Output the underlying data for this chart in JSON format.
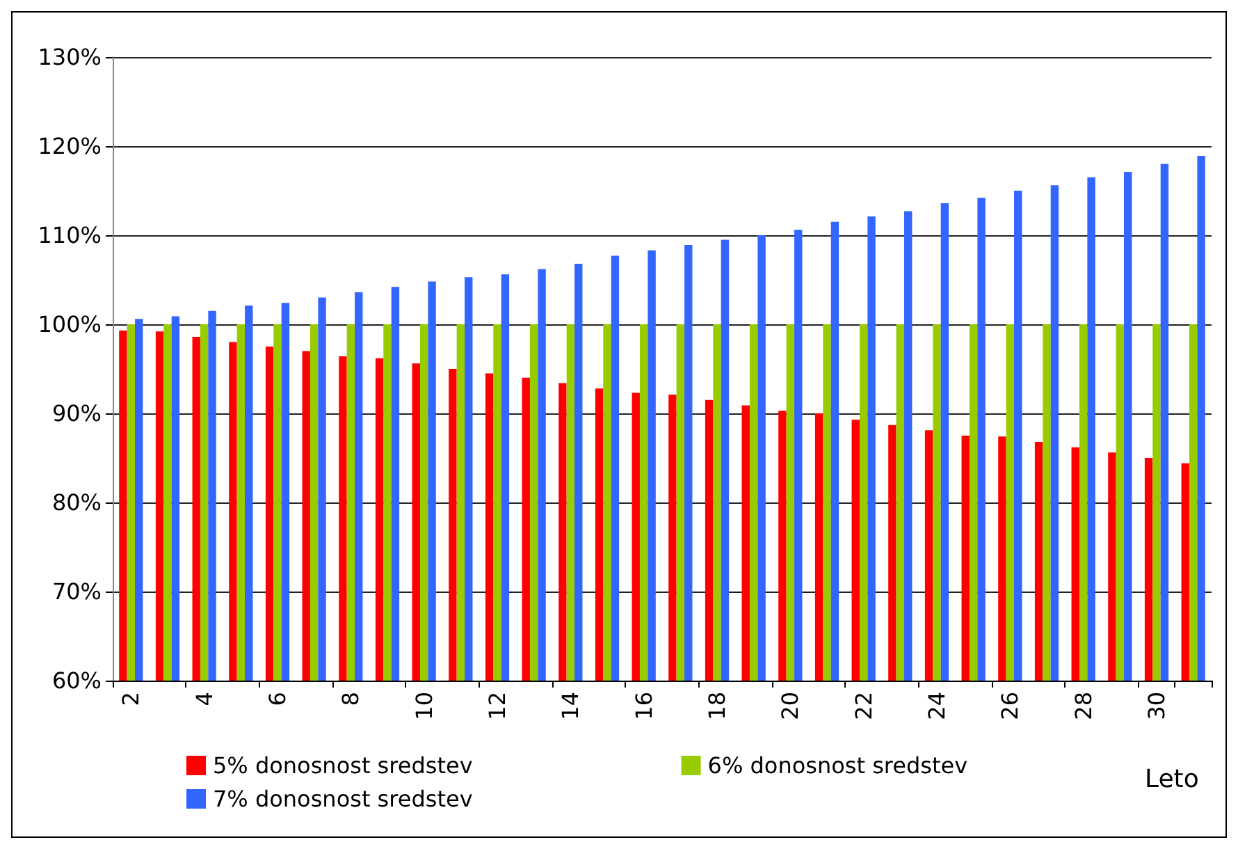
{
  "chart_data": {
    "type": "bar",
    "xlabel": "Leto",
    "categories": [
      "2",
      null,
      "4",
      null,
      "6",
      null,
      "8",
      null,
      "10",
      null,
      "12",
      null,
      "14",
      null,
      "16",
      null,
      "18",
      null,
      "20",
      null,
      "22",
      null,
      "24",
      null,
      "26",
      null,
      "28",
      null,
      "30",
      null
    ],
    "series": [
      {
        "name": "5% donosnost sredstev",
        "color": "#ff0000",
        "values": [
          99.3,
          99.2,
          98.6,
          98.0,
          97.5,
          97.0,
          96.4,
          96.2,
          95.6,
          95.0,
          94.5,
          94.0,
          93.4,
          92.8,
          92.3,
          92.1,
          91.5,
          90.9,
          90.3,
          90.0,
          89.3,
          88.7,
          88.1,
          87.5,
          87.4,
          86.8,
          86.2,
          85.6,
          85.0,
          84.4
        ]
      },
      {
        "name": "6% donosnost sredstev",
        "color": "#99cc00",
        "values": [
          100,
          100,
          100,
          100,
          100,
          100,
          100,
          100,
          100,
          100,
          100,
          100,
          100,
          100,
          100,
          100,
          100,
          100,
          100,
          100,
          100,
          100,
          100,
          100,
          100,
          100,
          100,
          100,
          100,
          100
        ]
      },
      {
        "name": "7% donosnost sredstev",
        "color": "#3366ff",
        "values": [
          100.6,
          100.9,
          101.5,
          102.1,
          102.4,
          103.0,
          103.6,
          104.2,
          104.8,
          105.3,
          105.6,
          106.2,
          106.8,
          107.7,
          108.3,
          108.9,
          109.5,
          110.0,
          110.6,
          111.5,
          112.1,
          112.7,
          113.6,
          114.2,
          115.0,
          115.6,
          116.5,
          117.1,
          118.0,
          118.9
        ]
      }
    ],
    "ylim": [
      60,
      130
    ],
    "yticks": [
      {
        "value": 60,
        "label": "60%"
      },
      {
        "value": 70,
        "label": "70%"
      },
      {
        "value": 80,
        "label": "80%"
      },
      {
        "value": 90,
        "label": "90%"
      },
      {
        "value": 100,
        "label": "100%"
      },
      {
        "value": 110,
        "label": "110%"
      },
      {
        "value": 120,
        "label": "120%"
      },
      {
        "value": 130,
        "label": "130%"
      }
    ],
    "grid": "y",
    "legend": "bottom"
  }
}
